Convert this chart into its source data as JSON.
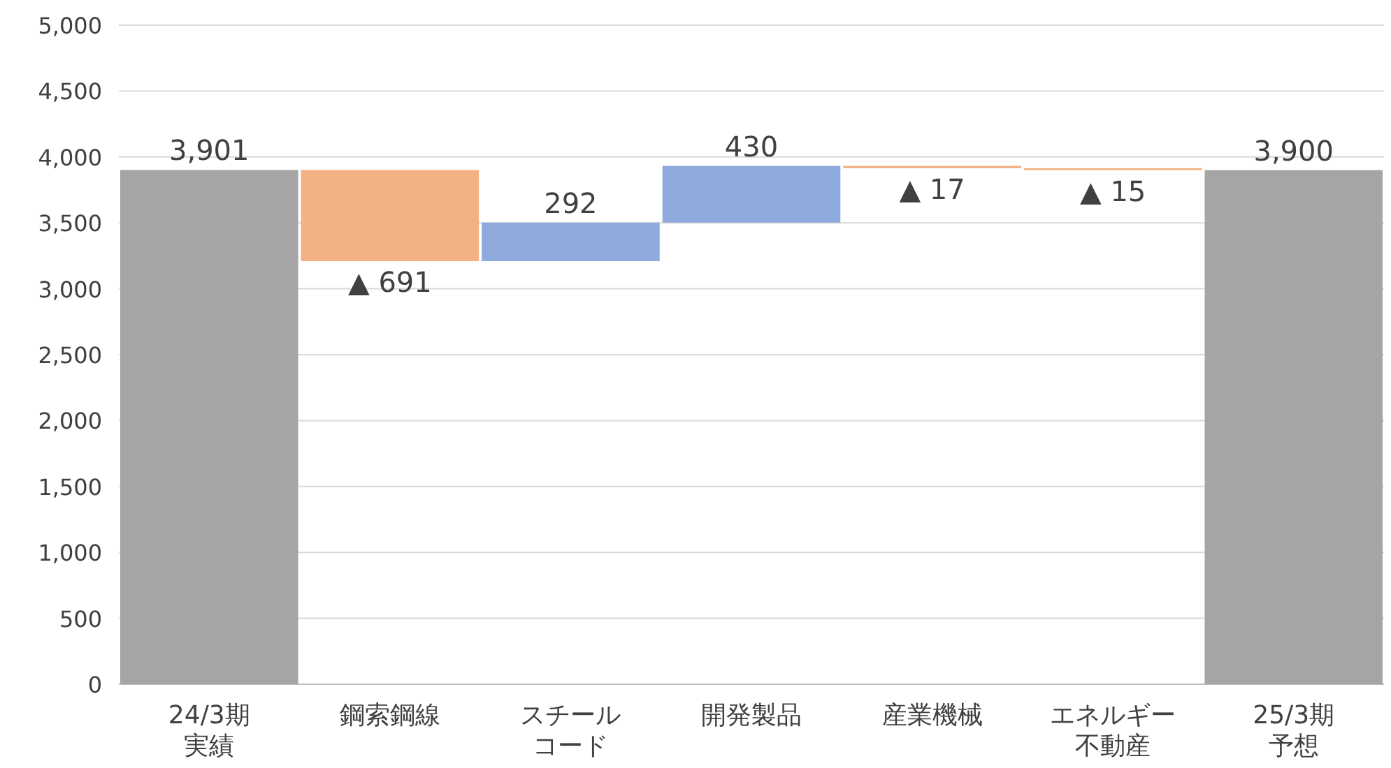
{
  "chart_data": {
    "type": "bar",
    "categories": [
      "24/3期実績",
      "鋼索鋼線",
      "スチールコード",
      "開発製品",
      "産業機械",
      "エネルギー不動産",
      "25/3期予想"
    ],
    "values": [
      3901,
      -691,
      292,
      430,
      -17,
      -15,
      3900
    ],
    "base": [
      0,
      3901,
      3210,
      3502,
      3932,
      3915,
      0
    ],
    "colors": [
      "#a5a5a5",
      "#f4b183",
      "#8faadc",
      "#8faadc",
      "#f4b183",
      "#f4b183",
      "#a5a5a5"
    ],
    "value_labels": [
      "3,901",
      "▲ 691",
      "292",
      "430",
      "▲ 17",
      "▲ 15",
      "3,900"
    ],
    "ylim": [
      0,
      5000
    ],
    "yticks": [
      {
        "value": 0,
        "label": "0"
      },
      {
        "value": 500,
        "label": "500"
      },
      {
        "value": 1000,
        "label": "1,000"
      },
      {
        "value": 1500,
        "label": "1,500"
      },
      {
        "value": 2000,
        "label": "2,000"
      },
      {
        "value": 2500,
        "label": "2,500"
      },
      {
        "value": 3000,
        "label": "3,000"
      },
      {
        "value": 3500,
        "label": "3,500"
      },
      {
        "value": 4000,
        "label": "4,000"
      },
      {
        "value": 4500,
        "label": "4,500"
      },
      {
        "value": 5000,
        "label": "5,000"
      }
    ],
    "grid": "y"
  }
}
